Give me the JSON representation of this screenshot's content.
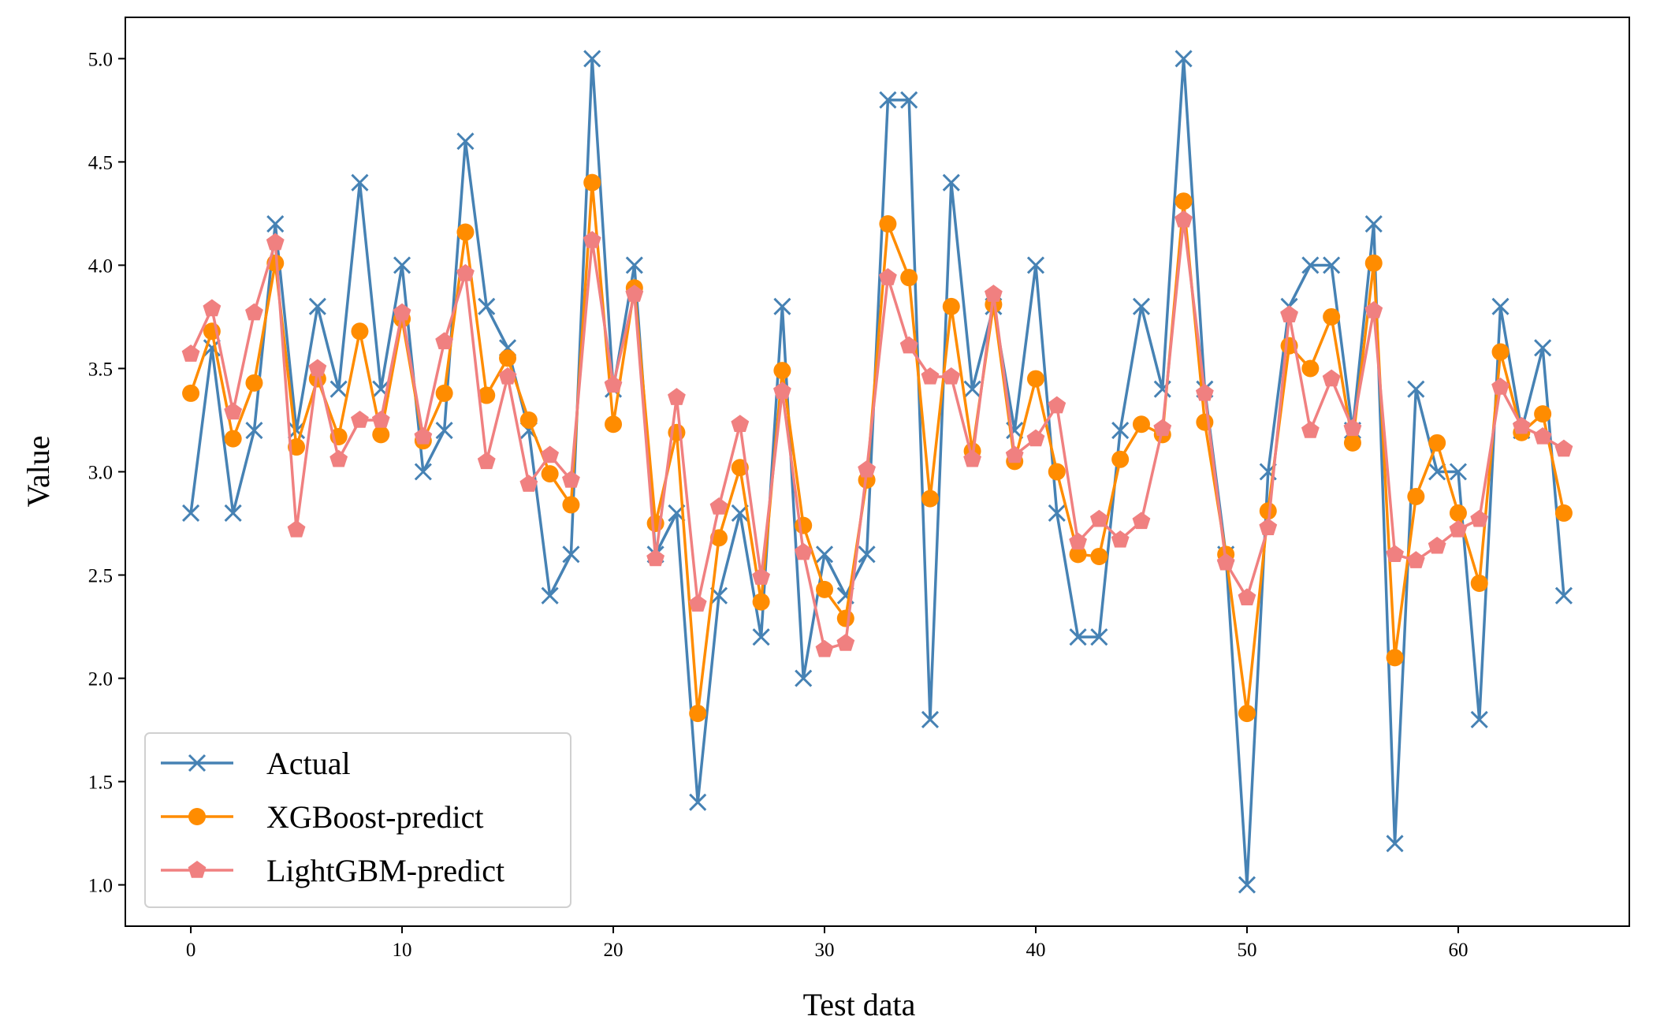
{
  "chart_data": {
    "type": "line",
    "title": "",
    "xlabel": "Test data",
    "ylabel": "Value",
    "xlim": [
      -3.1,
      68.1
    ],
    "ylim": [
      0.8,
      5.2
    ],
    "xticks": [
      0,
      10,
      20,
      30,
      40,
      50,
      60
    ],
    "xtick_labels": [
      "0",
      "10",
      "20",
      "30",
      "40",
      "50",
      "60"
    ],
    "yticks": [
      1.0,
      1.5,
      2.0,
      2.5,
      3.0,
      3.5,
      4.0,
      4.5,
      5.0
    ],
    "ytick_labels": [
      "1.0",
      "1.5",
      "2.0",
      "2.5",
      "3.0",
      "3.5",
      "4.0",
      "4.5",
      "5.0"
    ],
    "grid": false,
    "legend_position": "lower-left",
    "x": [
      0,
      1,
      2,
      3,
      4,
      5,
      6,
      7,
      8,
      9,
      10,
      11,
      12,
      13,
      14,
      15,
      16,
      17,
      18,
      19,
      20,
      21,
      22,
      23,
      24,
      25,
      26,
      27,
      28,
      29,
      30,
      31,
      32,
      33,
      34,
      35,
      36,
      37,
      38,
      39,
      40,
      41,
      42,
      43,
      44,
      45,
      46,
      47,
      48,
      49,
      50,
      51,
      52,
      53,
      54,
      55,
      56,
      57,
      58,
      59,
      60,
      61,
      62,
      63,
      64,
      65
    ],
    "series": [
      {
        "name": "Actual",
        "color": "#4682b4",
        "marker": "x",
        "values": [
          2.8,
          3.6,
          2.8,
          3.2,
          4.2,
          3.2,
          3.8,
          3.4,
          4.4,
          3.4,
          4.0,
          3.0,
          3.2,
          4.6,
          3.8,
          3.6,
          3.2,
          2.4,
          2.6,
          5.0,
          3.4,
          4.0,
          2.6,
          2.8,
          1.4,
          2.4,
          2.8,
          2.2,
          3.8,
          2.0,
          2.6,
          2.4,
          2.6,
          4.8,
          4.8,
          1.8,
          4.4,
          3.4,
          3.8,
          3.2,
          4.0,
          2.8,
          2.2,
          2.2,
          3.2,
          3.8,
          3.4,
          5.0,
          3.4,
          2.6,
          1.0,
          3.0,
          3.8,
          4.0,
          4.0,
          3.2,
          4.2,
          1.2,
          3.4,
          3.0,
          3.0,
          1.8,
          3.8,
          3.2,
          3.6,
          2.4
        ]
      },
      {
        "name": "XGBoost-predict",
        "color": "#ff8c00",
        "marker": "circle",
        "values": [
          3.38,
          3.68,
          3.16,
          3.43,
          4.01,
          3.12,
          3.45,
          3.17,
          3.68,
          3.18,
          3.74,
          3.15,
          3.38,
          4.16,
          3.37,
          3.55,
          3.25,
          2.99,
          2.84,
          4.4,
          3.23,
          3.89,
          2.75,
          3.19,
          1.83,
          2.68,
          3.02,
          2.37,
          3.49,
          2.74,
          2.43,
          2.29,
          2.96,
          4.2,
          3.94,
          2.87,
          3.8,
          3.1,
          3.81,
          3.05,
          3.45,
          3.0,
          2.6,
          2.59,
          3.06,
          3.23,
          3.18,
          4.31,
          3.24,
          2.6,
          1.83,
          2.81,
          3.61,
          3.5,
          3.75,
          3.14,
          4.01,
          2.1,
          2.88,
          3.14,
          2.8,
          2.46,
          3.58,
          3.19,
          3.28,
          2.8
        ]
      },
      {
        "name": "LightGBM-predict",
        "color": "#f08080",
        "marker": "pentagon",
        "values": [
          3.57,
          3.79,
          3.29,
          3.77,
          4.11,
          2.72,
          3.5,
          3.06,
          3.25,
          3.25,
          3.77,
          3.17,
          3.63,
          3.96,
          3.05,
          3.46,
          2.94,
          3.08,
          2.96,
          4.12,
          3.42,
          3.86,
          2.58,
          3.36,
          2.36,
          2.83,
          3.23,
          2.49,
          3.39,
          2.61,
          2.14,
          2.17,
          3.01,
          3.94,
          3.61,
          3.46,
          3.46,
          3.06,
          3.86,
          3.08,
          3.16,
          3.32,
          2.66,
          2.77,
          2.67,
          2.76,
          3.21,
          4.22,
          3.38,
          2.56,
          2.39,
          2.73,
          3.76,
          3.2,
          3.45,
          3.21,
          3.78,
          2.6,
          2.57,
          2.64,
          2.72,
          2.77,
          3.41,
          3.22,
          3.17,
          3.11
        ]
      }
    ]
  }
}
